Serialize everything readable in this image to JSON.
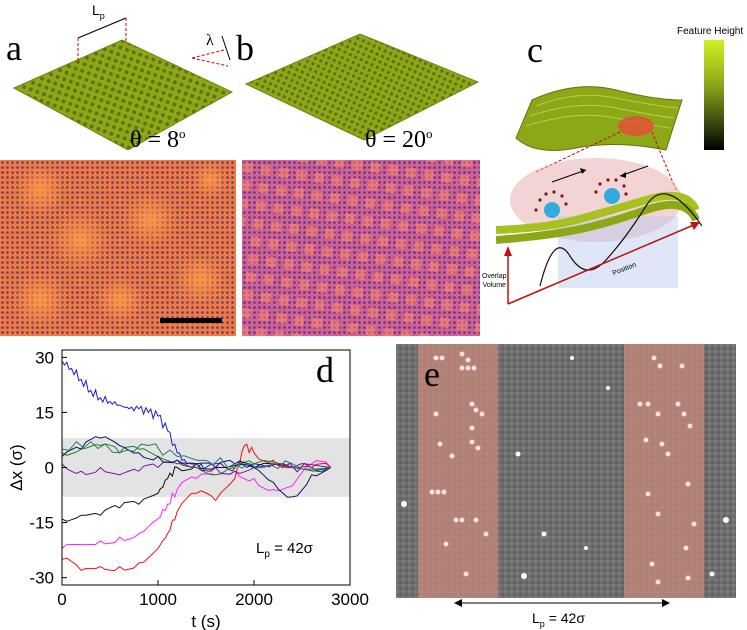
{
  "panels": {
    "a": {
      "label": "a",
      "annotation_lp": "L",
      "annotation_lp_sub": "p",
      "annotation_lambda": "λ",
      "theta": "θ = 8",
      "theta_sup": "o"
    },
    "b": {
      "label": "b",
      "theta": "θ = 20",
      "theta_sup": "o"
    },
    "c": {
      "label": "c",
      "colorbar_title": "Feature Height",
      "axis_y_label_1": "Overlap",
      "axis_y_label_2": "Volume",
      "axis_x_label": "Position"
    },
    "d": {
      "label": "d",
      "note": "L",
      "note_sub": "p",
      "note_rest": " = 42σ"
    },
    "e": {
      "label": "e",
      "scale_text": "L",
      "scale_sub": "p",
      "scale_rest": " = 42σ"
    }
  },
  "colors": {
    "surface": "#8da817",
    "micrograph_a": "#f0703a",
    "micrograph_b": "#d85c86",
    "band": "#e3e3e3",
    "stripe": "#c98a7c"
  },
  "chart_data": {
    "type": "line",
    "title": "",
    "xlabel": "t (s)",
    "ylabel": "Δx (σ)",
    "xlim": [
      0,
      3000
    ],
    "ylim": [
      -32,
      32
    ],
    "xticks": [
      0,
      1000,
      2000,
      3000
    ],
    "yticks": [
      30,
      15,
      0,
      -15,
      -30
    ],
    "shaded_band": [
      -8,
      8
    ],
    "series": [
      {
        "name": "blue",
        "color": "#1a1adb",
        "x": [
          0,
          100,
          200,
          300,
          400,
          500,
          600,
          700,
          800,
          900,
          1000,
          1100,
          1200,
          1300,
          1400,
          1500,
          1700,
          2000,
          2300,
          2600,
          2800
        ],
        "y": [
          29,
          27,
          24,
          21,
          19,
          18,
          17,
          16,
          16,
          15,
          14,
          10,
          4,
          1,
          1,
          0,
          0,
          1,
          0,
          0,
          0
        ]
      },
      {
        "name": "black",
        "color": "#111111",
        "x": [
          0,
          200,
          400,
          600,
          800,
          1000,
          1100,
          1200,
          1400,
          1600,
          2000,
          2400,
          2800
        ],
        "y": [
          -14,
          -13,
          -13,
          -11,
          -10,
          -7,
          -3,
          0,
          1,
          0,
          0,
          0,
          0
        ]
      },
      {
        "name": "magenta",
        "color": "#ff22ff",
        "x": [
          0,
          200,
          400,
          600,
          800,
          1000,
          1100,
          1200,
          1400,
          1600,
          1800,
          2000,
          2200,
          2400,
          2600,
          2800
        ],
        "y": [
          -22,
          -21,
          -20,
          -19,
          -18,
          -14,
          -10,
          -6,
          -3,
          -2,
          -1,
          -3,
          -6,
          -5,
          1,
          0
        ]
      },
      {
        "name": "red",
        "color": "#ee1111",
        "x": [
          0,
          200,
          400,
          600,
          800,
          1000,
          1100,
          1200,
          1400,
          1600,
          1800,
          1900,
          2000,
          2200,
          2400,
          2600,
          2800
        ],
        "y": [
          -25,
          -28,
          -27,
          -27,
          -26,
          -22,
          -18,
          -12,
          -7,
          -9,
          -3,
          6,
          4,
          2,
          0,
          0,
          0
        ]
      },
      {
        "name": "green",
        "color": "#1a8a1a",
        "x": [
          0,
          200,
          400,
          600,
          800,
          1000,
          1200,
          1400,
          1600,
          1800,
          2000,
          2400,
          2800
        ],
        "y": [
          4,
          5,
          6,
          4,
          5,
          3,
          2,
          1,
          -2,
          0,
          1,
          0,
          0
        ]
      },
      {
        "name": "purple",
        "color": "#7a1a9a",
        "x": [
          0,
          200,
          400,
          600,
          800,
          1000,
          1200,
          1400,
          1600,
          1800,
          2000,
          2400,
          2800
        ],
        "y": [
          1,
          -1,
          0,
          -2,
          -1,
          0,
          1,
          0,
          0,
          -1,
          0,
          0,
          0
        ]
      },
      {
        "name": "navy",
        "color": "#11116a",
        "x": [
          0,
          200,
          400,
          600,
          800,
          1000,
          1200,
          1400,
          1600,
          1800,
          2000,
          2200,
          2400,
          2600,
          2800
        ],
        "y": [
          3,
          5,
          8,
          6,
          4,
          3,
          2,
          1,
          0,
          1,
          0,
          -4,
          -8,
          -2,
          0
        ]
      },
      {
        "name": "teal",
        "color": "#2a7a7a",
        "x": [
          0,
          300,
          600,
          900,
          1200,
          1500,
          1800,
          2100,
          2400,
          2800
        ],
        "y": [
          5,
          7,
          4,
          6,
          3,
          2,
          1,
          0,
          1,
          0
        ]
      }
    ]
  }
}
